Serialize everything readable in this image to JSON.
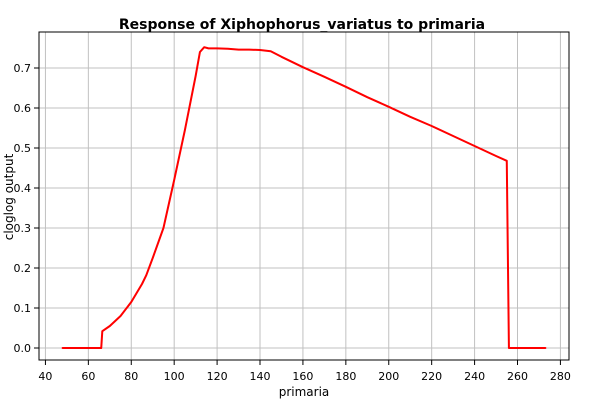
{
  "chart_data": {
    "type": "line",
    "title": "Response of Xiphophorus_variatus to primaria",
    "xlabel": "primaria",
    "ylabel": "cloglog output",
    "xlim": [
      37,
      284
    ],
    "ylim": [
      -0.03,
      0.79
    ],
    "xticks": [
      40,
      60,
      80,
      100,
      120,
      140,
      160,
      180,
      200,
      220,
      240,
      260,
      280
    ],
    "yticks": [
      0.0,
      0.1,
      0.2,
      0.3,
      0.4,
      0.5,
      0.6,
      0.7
    ],
    "grid": true,
    "series": [
      {
        "color": "#ff0000",
        "x": [
          48,
          66,
          66.5,
          70,
          75,
          80,
          85,
          87,
          90,
          95,
          100,
          105,
          110,
          112,
          114,
          116,
          120,
          125,
          130,
          135,
          140,
          145,
          150,
          160,
          170,
          180,
          190,
          200,
          210,
          220,
          230,
          240,
          250,
          255,
          256,
          260,
          265,
          273
        ],
        "y": [
          0.0,
          0.0,
          0.042,
          0.055,
          0.08,
          0.115,
          0.16,
          0.182,
          0.225,
          0.3,
          0.42,
          0.545,
          0.68,
          0.74,
          0.752,
          0.749,
          0.749,
          0.748,
          0.746,
          0.746,
          0.745,
          0.742,
          0.728,
          0.702,
          0.678,
          0.653,
          0.627,
          0.603,
          0.578,
          0.555,
          0.53,
          0.505,
          0.48,
          0.468,
          0.0,
          0.0,
          0.0,
          0.0
        ]
      }
    ]
  }
}
